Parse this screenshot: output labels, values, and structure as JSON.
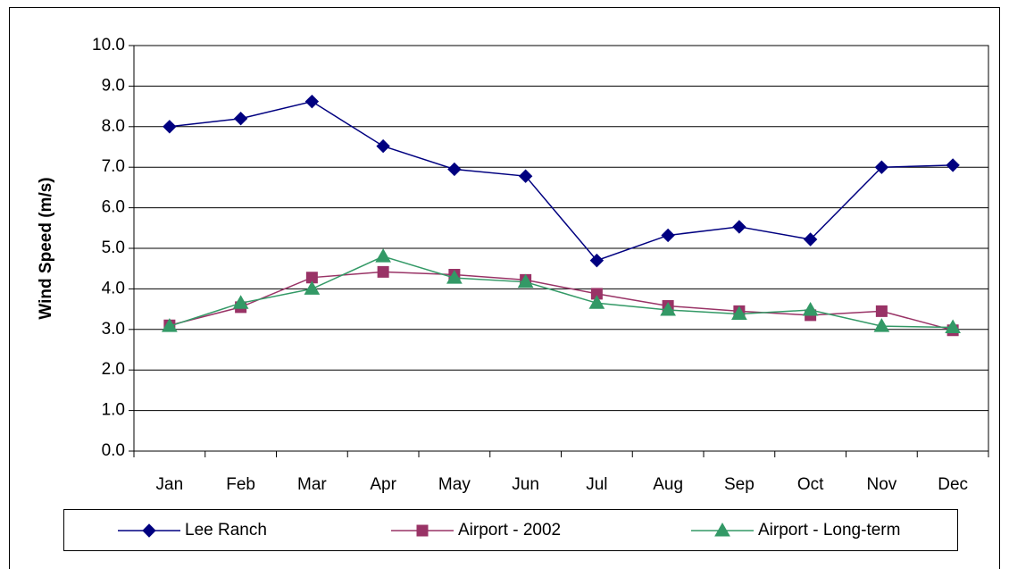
{
  "chart_data": {
    "type": "line",
    "y_label": "Wind Speed (m/s)",
    "categories": [
      "Jan",
      "Feb",
      "Mar",
      "Apr",
      "May",
      "Jun",
      "Jul",
      "Aug",
      "Sep",
      "Oct",
      "Nov",
      "Dec"
    ],
    "series": [
      {
        "name": "Lee Ranch",
        "color": "#000080",
        "marker": "diamond",
        "values": [
          8.0,
          8.2,
          8.62,
          7.52,
          6.95,
          6.78,
          4.7,
          5.32,
          5.53,
          5.22,
          7.0,
          7.05
        ]
      },
      {
        "name": "Airport - 2002",
        "color": "#993366",
        "marker": "square",
        "values": [
          3.1,
          3.55,
          4.28,
          4.42,
          4.35,
          4.22,
          3.88,
          3.58,
          3.45,
          3.35,
          3.45,
          2.98
        ]
      },
      {
        "name": "Airport - Long-term",
        "color": "#339966",
        "marker": "triangle",
        "values": [
          3.08,
          3.65,
          4.0,
          4.8,
          4.27,
          4.17,
          3.65,
          3.48,
          3.38,
          3.48,
          3.08,
          3.05
        ]
      }
    ],
    "ylim": [
      0,
      10
    ],
    "yticks": [
      {
        "value": 0,
        "label": "0.0"
      },
      {
        "value": 1,
        "label": "1.0"
      },
      {
        "value": 2,
        "label": "2.0"
      },
      {
        "value": 3,
        "label": "3.0"
      },
      {
        "value": 4,
        "label": "4.0"
      },
      {
        "value": 5,
        "label": "5.0"
      },
      {
        "value": 6,
        "label": "6.0"
      },
      {
        "value": 7,
        "label": "7.0"
      },
      {
        "value": 8,
        "label": "8.0"
      },
      {
        "value": 9,
        "label": "9.0"
      },
      {
        "value": 10,
        "label": "10.0"
      }
    ],
    "grid": true,
    "legend": "bottom"
  }
}
